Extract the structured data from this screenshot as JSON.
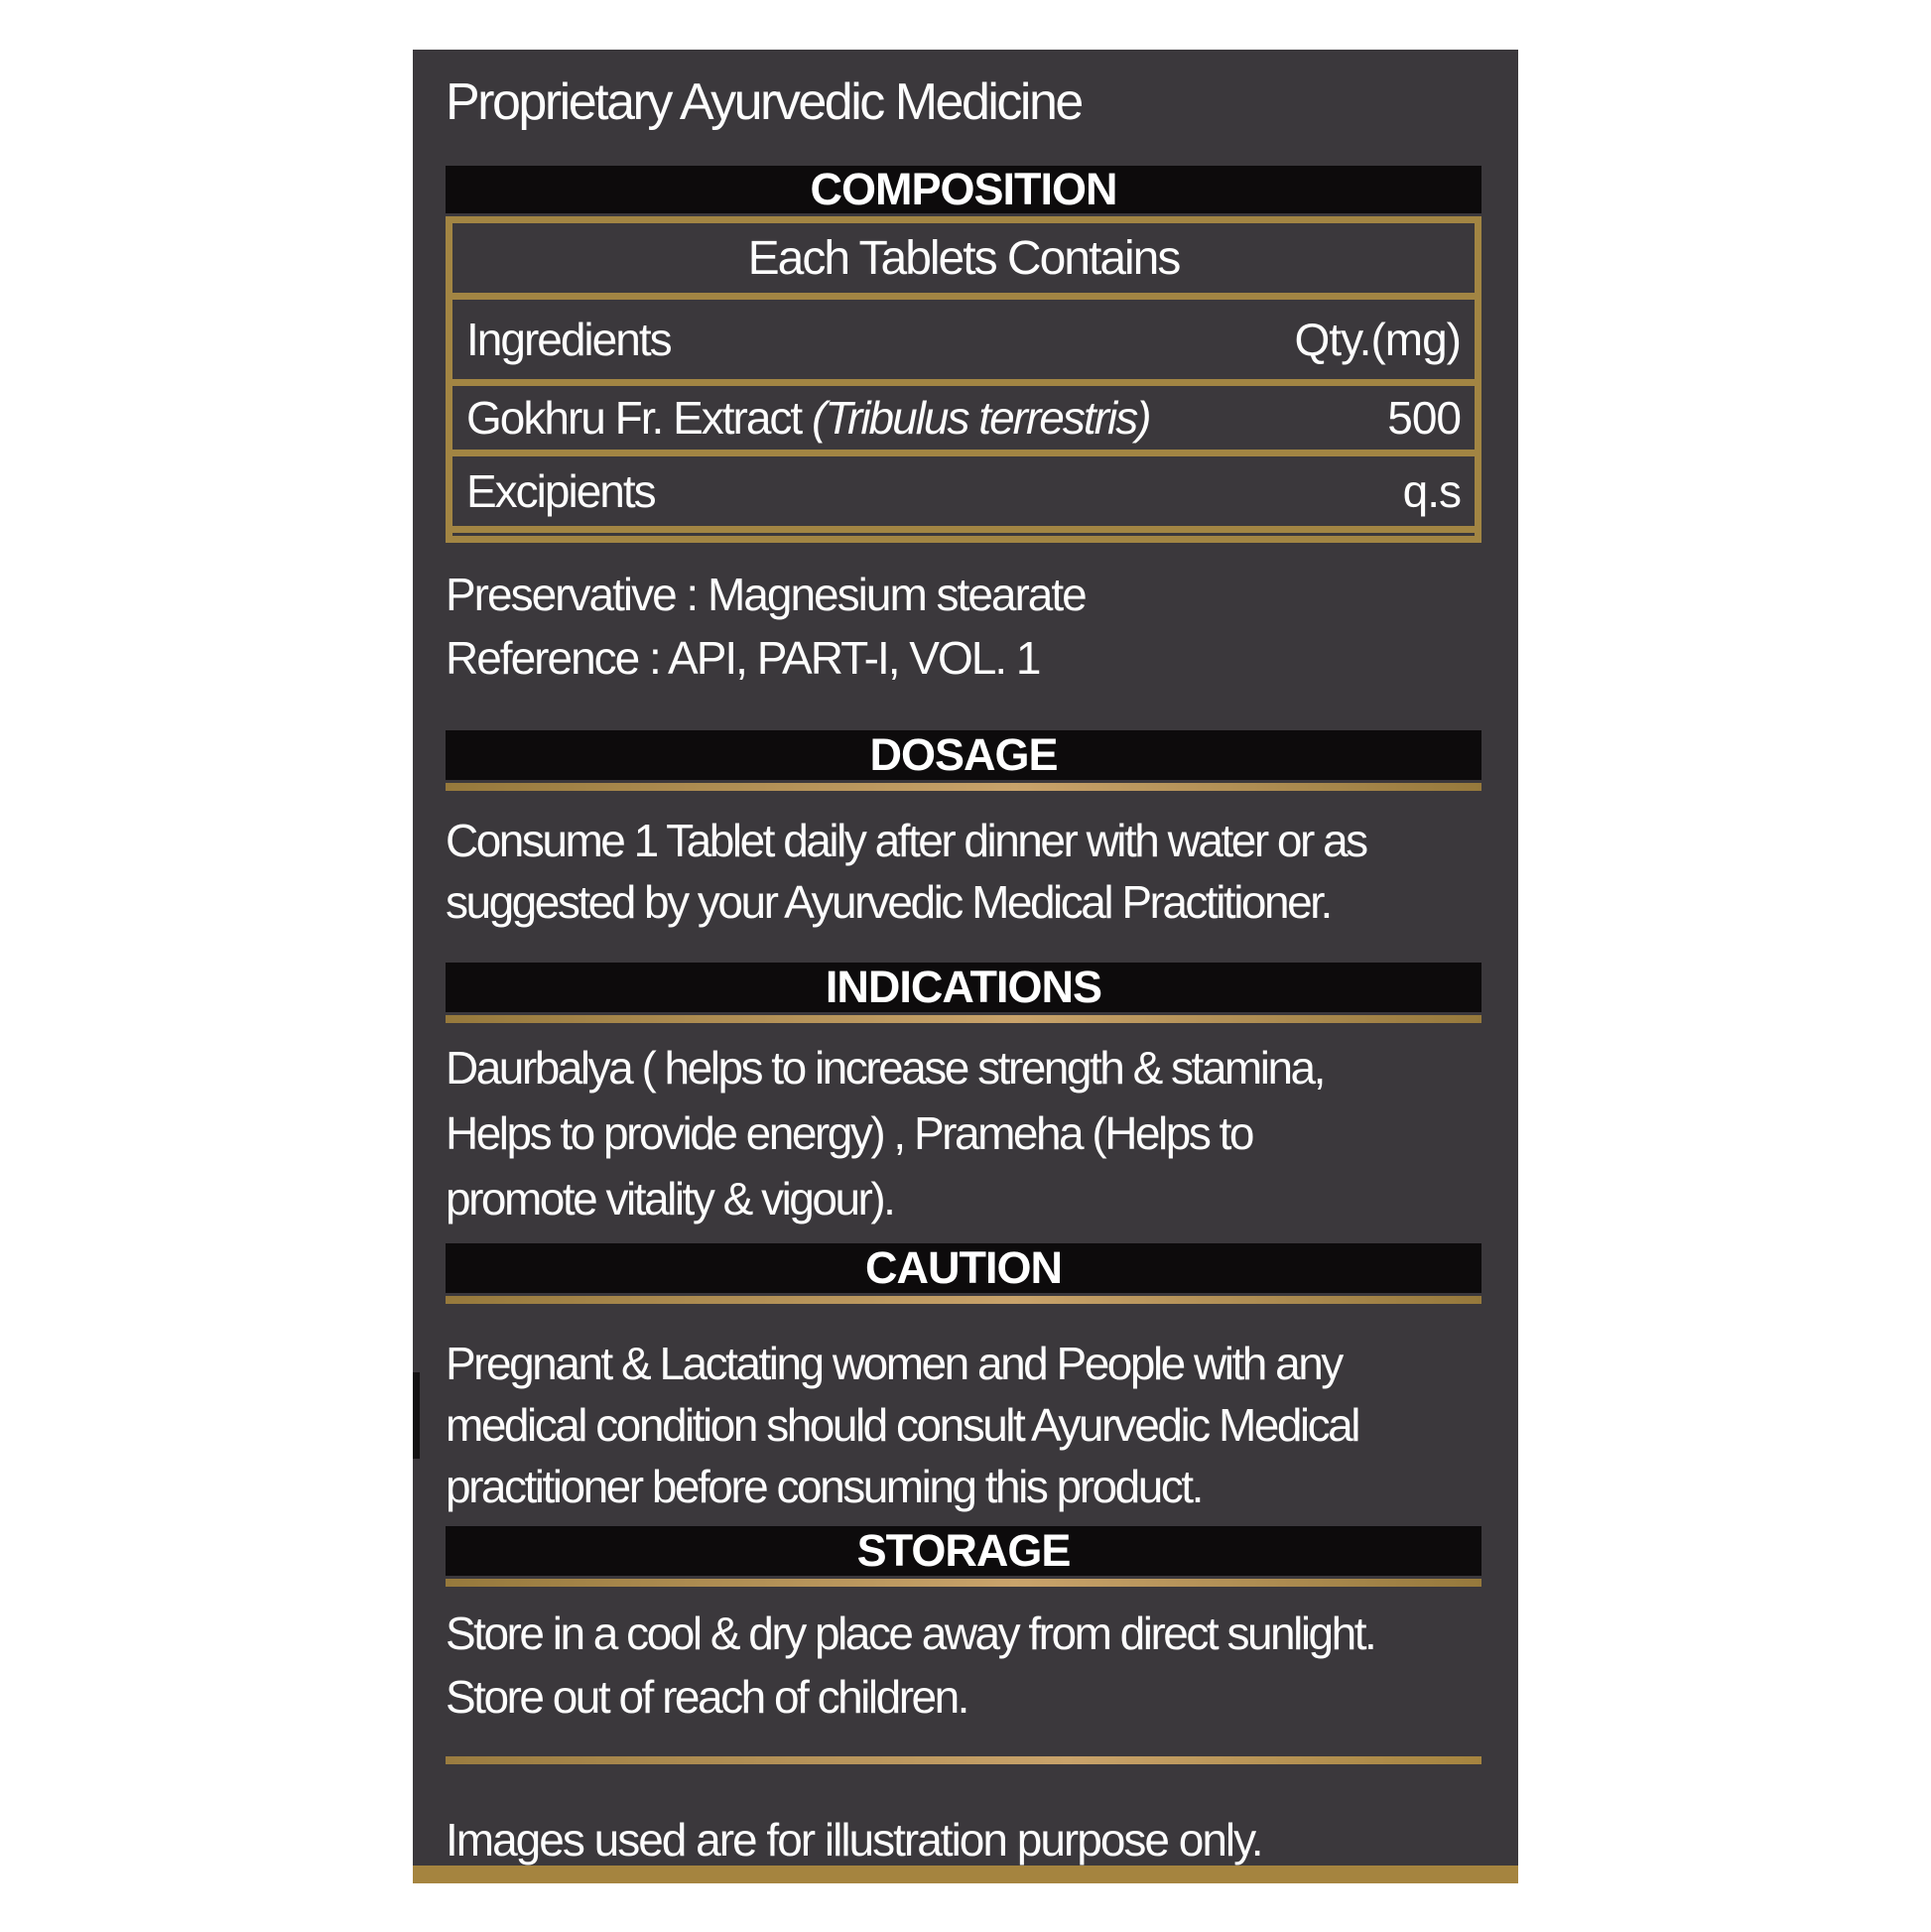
{
  "label": {
    "product_type": "Proprietary Ayurvedic Medicine",
    "composition": {
      "heading": "COMPOSITION",
      "table": {
        "header": "Each Tablets Contains",
        "columns": {
          "ingredients": "Ingredients",
          "qty": "Qty.(mg)"
        },
        "rows": [
          {
            "name": "Gokhru Fr. Extract ",
            "latin": "(Tribulus terrestris)",
            "qty": "500"
          },
          {
            "name": "Excipients",
            "latin": "",
            "qty": "q.s"
          }
        ]
      },
      "notes": [
        "Preservative : Magnesium stearate",
        "Reference : API, PART-I, VOL. 1"
      ]
    },
    "dosage": {
      "heading": "DOSAGE",
      "lines": [
        "Consume 1 Tablet daily after dinner with water or as",
        "suggested by your Ayurvedic Medical Practitioner."
      ]
    },
    "indications": {
      "heading": "INDICATIONS",
      "lines": [
        "Daurbalya ( helps to increase strength & stamina,",
        "Helps to provide energy) , Prameha (Helps to",
        "promote vitality & vigour)."
      ]
    },
    "caution": {
      "heading": "CAUTION",
      "lines": [
        "Pregnant & Lactating women and People with any",
        "medical condition should consult Ayurvedic Medical",
        "practitioner before consuming this product."
      ]
    },
    "storage": {
      "heading": "STORAGE",
      "lines": [
        "Store in a cool & dry place away from direct sunlight.",
        "Store out of reach of children."
      ]
    },
    "footer": "Images used are for illustration purpose only.",
    "colors": {
      "panel_bg": "#3B383C",
      "section_bar_bg": "#0D0B0C",
      "gold": "#A28543",
      "bottom_bar": "#A5843F",
      "text": "#FDFDFD"
    }
  }
}
